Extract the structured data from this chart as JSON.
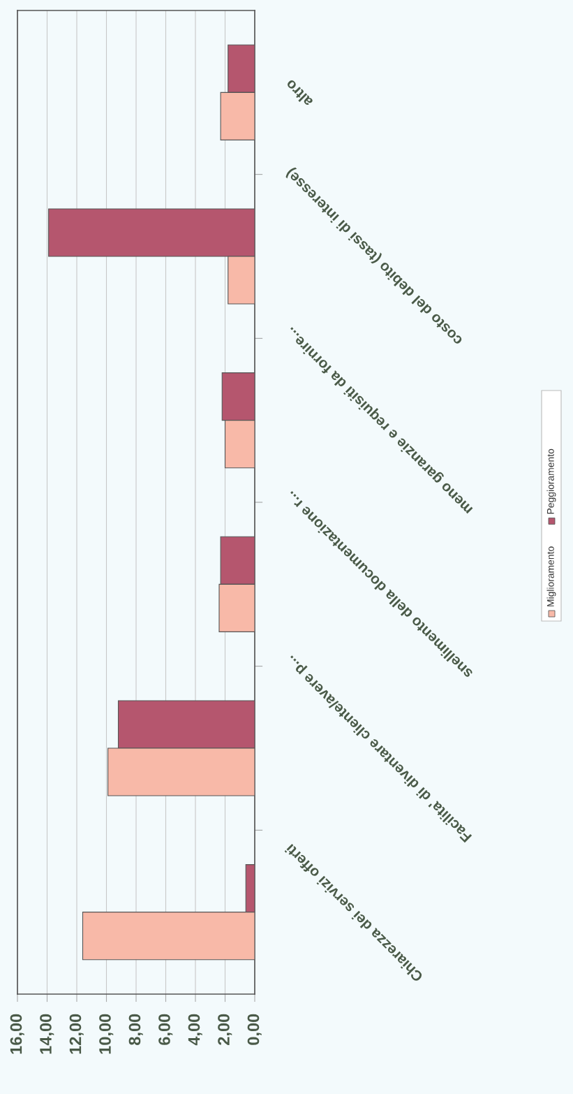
{
  "chart_data": {
    "type": "bar",
    "orientation": "horizontal",
    "categories": [
      "altro",
      "costo del debito (tassi di interesse)",
      "meno garanzie e requisiti da fornire...",
      "snellimento della documentazione r...",
      "Facilita' di diventare cliente/avere p...",
      "Chiarezza dei servizi offerti"
    ],
    "series": [
      {
        "name": "Peggioramento",
        "color": "#b5566e",
        "values": [
          1.8,
          13.9,
          2.2,
          2.3,
          9.2,
          0.6
        ]
      },
      {
        "name": "Miglioramento",
        "color": "#f8b9a8",
        "values": [
          2.3,
          1.8,
          2.0,
          2.4,
          9.9,
          11.6
        ]
      }
    ],
    "xlim": [
      16,
      0
    ],
    "xticks": [
      {
        "value": 16,
        "label": "16,00"
      },
      {
        "value": 14,
        "label": "14,00"
      },
      {
        "value": 12,
        "label": "12,00"
      },
      {
        "value": 10,
        "label": "10,00"
      },
      {
        "value": 8,
        "label": "8,00"
      },
      {
        "value": 6,
        "label": "6,00"
      },
      {
        "value": 4,
        "label": "4,00"
      },
      {
        "value": 2,
        "label": "2,00"
      },
      {
        "value": 0,
        "label": "0,00"
      }
    ],
    "grid": "x",
    "legend": "right"
  }
}
